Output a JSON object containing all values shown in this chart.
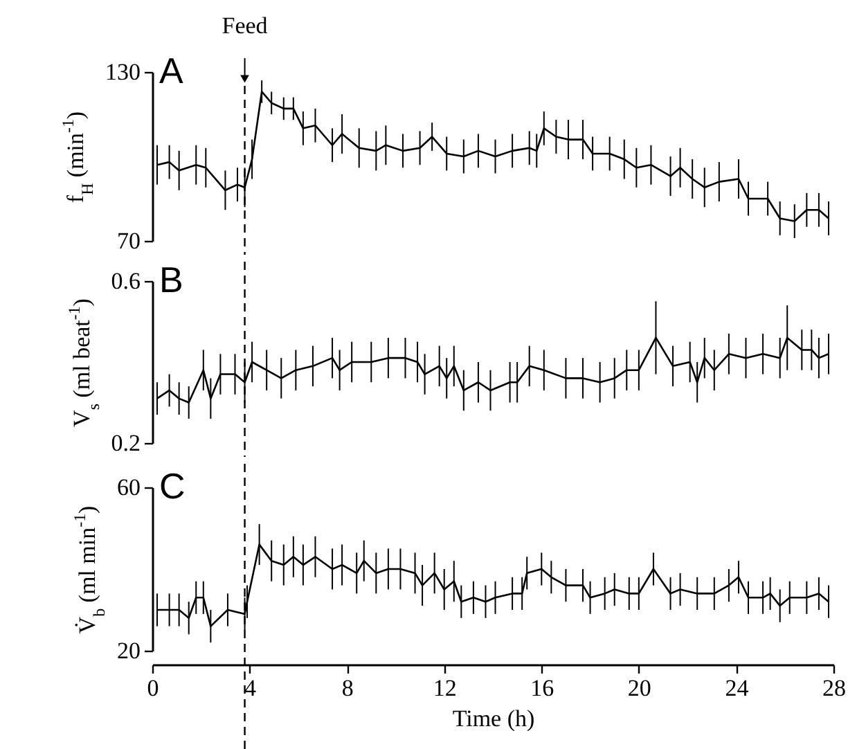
{
  "chart_data": [
    {
      "type": "line",
      "title": "A",
      "ylabel": "f$_{H}$ (min$^{-1}$)",
      "color": "#000000",
      "line_style": "solid",
      "tick_labels": "y",
      "xlim": [
        0,
        28
      ],
      "ylim": [
        70,
        130
      ],
      "yticks": [
        70,
        130
      ],
      "x": [
        0.2,
        0.7,
        1.1,
        1.8,
        2.2,
        3.0,
        3.5,
        3.8,
        4.1,
        4.5,
        4.9,
        5.4,
        5.8,
        6.2,
        6.7,
        7.4,
        7.8,
        8.5,
        9.2,
        9.6,
        10.3,
        11.0,
        11.5,
        12.1,
        12.8,
        13.4,
        14.1,
        14.8,
        15.5,
        15.8,
        16.1,
        16.6,
        17.1,
        17.7,
        18.1,
        18.8,
        19.4,
        19.9,
        20.5,
        21.3,
        21.7,
        22.2,
        22.7,
        23.3,
        24.1,
        24.5,
        25.3,
        25.8,
        26.4,
        26.9,
        27.4,
        27.8
      ],
      "values": [
        97,
        98,
        95,
        97,
        96,
        88,
        90,
        89,
        99,
        123,
        119,
        117,
        117,
        110,
        111,
        104,
        108,
        103,
        102,
        104,
        102,
        103,
        107,
        101,
        100,
        102,
        100,
        102,
        103,
        102,
        110,
        107,
        106,
        106,
        101,
        101,
        99,
        96,
        97,
        93,
        96,
        92,
        89,
        91,
        92,
        85,
        85,
        78,
        77,
        81,
        81,
        78
      ],
      "errors": [
        7,
        6,
        7,
        7,
        7,
        7,
        6,
        7,
        7,
        4,
        4,
        4,
        4,
        6,
        6,
        6,
        7,
        7,
        7,
        7,
        6,
        6,
        5,
        6,
        6,
        6,
        6,
        6,
        6,
        6,
        6,
        6,
        7,
        7,
        6,
        6,
        7,
        7,
        7,
        7,
        7,
        7,
        7,
        7,
        7,
        6,
        6,
        6,
        6,
        6,
        6,
        6
      ],
      "ref_lines": [
        {
          "axis": "x",
          "value": 3.8,
          "label": "Feed",
          "line_style": "dashed"
        }
      ]
    },
    {
      "type": "line",
      "title": "B",
      "ylabel": "V$_{s}$ (ml beat$^{-1}$)",
      "color": "#000000",
      "line_style": "solid",
      "tick_labels": "y",
      "xlim": [
        0,
        28
      ],
      "ylim": [
        0.2,
        0.6
      ],
      "yticks": [
        0.2,
        0.6
      ],
      "x": [
        0.2,
        0.7,
        1.1,
        1.5,
        2.1,
        2.4,
        2.8,
        3.4,
        3.8,
        4.1,
        4.7,
        5.3,
        5.9,
        6.6,
        7.4,
        7.7,
        8.2,
        9.0,
        9.7,
        10.4,
        10.9,
        11.2,
        11.8,
        12.1,
        12.4,
        12.8,
        13.4,
        13.9,
        14.7,
        15.0,
        15.5,
        16.1,
        17.0,
        17.7,
        18.4,
        19.0,
        19.5,
        20.0,
        20.7,
        21.4,
        22.1,
        22.4,
        22.7,
        23.1,
        23.7,
        24.4,
        25.1,
        25.8,
        26.1,
        26.7,
        27.1,
        27.4,
        27.8
      ],
      "values": [
        0.31,
        0.33,
        0.31,
        0.3,
        0.38,
        0.31,
        0.37,
        0.37,
        0.35,
        0.4,
        0.38,
        0.36,
        0.38,
        0.39,
        0.41,
        0.38,
        0.4,
        0.4,
        0.41,
        0.41,
        0.4,
        0.37,
        0.39,
        0.36,
        0.39,
        0.33,
        0.35,
        0.33,
        0.35,
        0.35,
        0.39,
        0.38,
        0.36,
        0.36,
        0.35,
        0.36,
        0.38,
        0.38,
        0.46,
        0.39,
        0.4,
        0.35,
        0.41,
        0.38,
        0.42,
        0.41,
        0.42,
        0.41,
        0.46,
        0.43,
        0.43,
        0.41,
        0.42
      ],
      "errors": [
        0.04,
        0.04,
        0.04,
        0.04,
        0.05,
        0.05,
        0.05,
        0.05,
        0.05,
        0.05,
        0.05,
        0.05,
        0.05,
        0.05,
        0.05,
        0.05,
        0.05,
        0.05,
        0.05,
        0.05,
        0.05,
        0.05,
        0.05,
        0.05,
        0.05,
        0.05,
        0.05,
        0.05,
        0.05,
        0.05,
        0.05,
        0.05,
        0.05,
        0.05,
        0.05,
        0.05,
        0.05,
        0.05,
        0.09,
        0.05,
        0.05,
        0.05,
        0.05,
        0.05,
        0.05,
        0.05,
        0.05,
        0.05,
        0.08,
        0.05,
        0.05,
        0.05,
        0.05
      ],
      "ref_lines": [
        {
          "axis": "x",
          "value": 3.8,
          "line_style": "dashed"
        }
      ]
    },
    {
      "type": "line",
      "title": "C",
      "xlabel": "Time (h)",
      "ylabel": "V̇$_{b}$ (ml min$^{-1}$)",
      "color": "#000000",
      "line_style": "solid",
      "xlim": [
        0,
        28
      ],
      "xticks": [
        0,
        4,
        8,
        12,
        16,
        20,
        24,
        28
      ],
      "ylim": [
        20,
        60
      ],
      "yticks": [
        20,
        60
      ],
      "x": [
        0.2,
        0.7,
        1.1,
        1.5,
        1.8,
        2.1,
        2.4,
        3.1,
        3.8,
        3.9,
        4.4,
        4.9,
        5.4,
        5.8,
        6.2,
        6.7,
        7.4,
        7.8,
        8.4,
        8.7,
        9.2,
        9.7,
        10.2,
        10.8,
        11.1,
        11.6,
        12.0,
        12.4,
        12.7,
        13.2,
        13.7,
        14.1,
        14.8,
        15.2,
        15.4,
        16.0,
        16.4,
        17.0,
        17.7,
        18.0,
        18.6,
        19.0,
        19.6,
        20.0,
        20.6,
        21.3,
        21.7,
        22.4,
        23.1,
        23.7,
        24.1,
        24.5,
        25.1,
        25.4,
        25.8,
        26.2,
        26.9,
        27.4,
        27.8
      ],
      "values": [
        30,
        30,
        30,
        28,
        33,
        33,
        26,
        30,
        29,
        32,
        46,
        42,
        41,
        43,
        41,
        43,
        40,
        41,
        39,
        42,
        39,
        40,
        40,
        39,
        36,
        39,
        35,
        37,
        32,
        33,
        32,
        33,
        34,
        34,
        39,
        40,
        38,
        36,
        36,
        33,
        34,
        35,
        34,
        34,
        40,
        34,
        35,
        34,
        34,
        36,
        38,
        33,
        33,
        34,
        31,
        33,
        33,
        34,
        32
      ],
      "errors": [
        4,
        4,
        4,
        4,
        4,
        4,
        4,
        4,
        4,
        4,
        5,
        5,
        5,
        5,
        5,
        5,
        5,
        5,
        5,
        5,
        5,
        5,
        5,
        5,
        5,
        5,
        5,
        5,
        4,
        4,
        4,
        4,
        4,
        4,
        4,
        4,
        4,
        4,
        4,
        4,
        4,
        4,
        4,
        4,
        4,
        4,
        4,
        4,
        4,
        4,
        4,
        4,
        4,
        4,
        4,
        4,
        4,
        4,
        4
      ],
      "ref_lines": [
        {
          "axis": "x",
          "value": 3.8,
          "line_style": "dashed"
        }
      ]
    }
  ]
}
